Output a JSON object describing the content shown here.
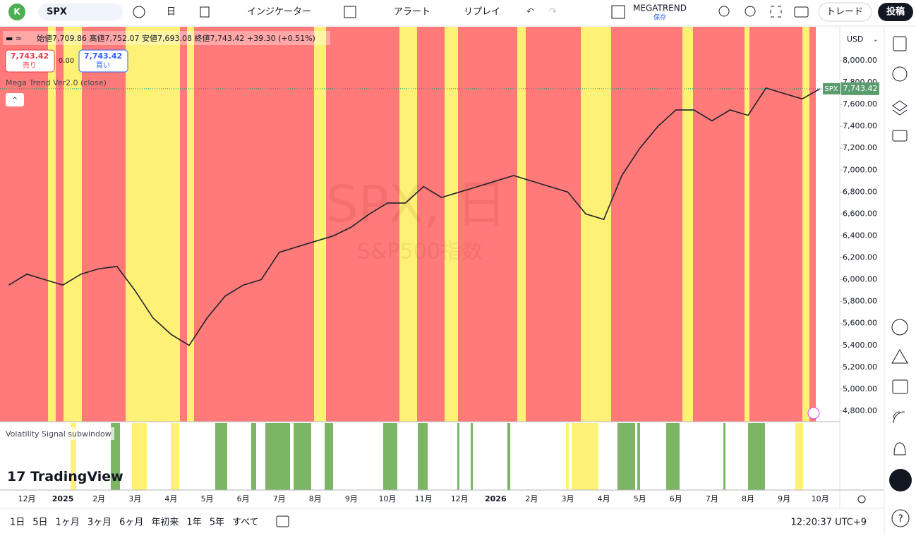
{
  "toolbar": {
    "avatar": "K",
    "symbol": "SPX",
    "interval": "日",
    "indicators": "インジケーター",
    "alert": "アラート",
    "replay": "リプレイ",
    "layout_name": "MEGATREND",
    "layout_status": "保存",
    "trade": "トレード",
    "publish": "投稿"
  },
  "legend": {
    "ohlc": "始値7,709.86 高値7,752.07 安値7,693.08 終値7,743.42 +39.30 (+0.51%)",
    "sell_price": "7,743.42",
    "sell": "売り",
    "spread": "0.00",
    "buy_price": "7,743.42",
    "buy": "買い",
    "indicator": "Mega Trend Ver2.0 (close)"
  },
  "watermark": {
    "symbol": "SPX, 日",
    "name": "S&P500指数"
  },
  "subwindow": {
    "title": "Volatility Signal subwindow",
    "logo": "TradingView"
  },
  "price_axis": {
    "currency": "USD",
    "tag_symbol": "SPX"
  },
  "chart_data": {
    "type": "line",
    "color": "#1e222d",
    "categories": [
      null,
      "12月",
      null,
      "2025",
      null,
      "2月",
      null,
      "3月",
      null,
      "4月",
      null,
      "5月",
      null,
      "6月",
      null,
      "7月",
      null,
      "8月",
      null,
      "9月",
      null,
      "10月",
      null,
      "11月",
      null,
      "12月",
      null,
      "2026",
      null,
      "2月",
      null,
      "3月",
      null,
      "4月",
      null,
      "5月",
      null,
      "6月",
      null,
      "7月",
      null,
      "8月",
      null,
      "9月",
      null,
      "10月"
    ],
    "values": [
      5950,
      6050,
      6000,
      5950,
      6050,
      6100,
      6120,
      5900,
      5650,
      5500,
      5400,
      5650,
      5850,
      5950,
      6000,
      6250,
      6300,
      6350,
      6400,
      6480,
      6600,
      6700,
      6700,
      6850,
      6750,
      6800,
      6850,
      6900,
      6950,
      6900,
      6850,
      6800,
      6600,
      6550,
      6950,
      7200,
      7400,
      7550,
      7550,
      7450,
      7550,
      7500,
      7750,
      7700,
      7650,
      7743.42
    ],
    "last_price": {
      "value": 7743.42,
      "label": "7,743.42"
    },
    "ylim": [
      4703,
      8309
    ],
    "yticks": [
      {
        "value": 4800,
        "label": "4,800.00"
      },
      {
        "value": 5000,
        "label": "5,000.00"
      },
      {
        "value": 5200,
        "label": "5,200.00"
      },
      {
        "value": 5400,
        "label": "5,400.00"
      },
      {
        "value": 5600,
        "label": "5,600.00"
      },
      {
        "value": 5800,
        "label": "5,800.00"
      },
      {
        "value": 6000,
        "label": "6,000.00"
      },
      {
        "value": 6200,
        "label": "6,200.00"
      },
      {
        "value": 6400,
        "label": "6,400.00"
      },
      {
        "value": 6600,
        "label": "6,600.00"
      },
      {
        "value": 6800,
        "label": "6,800.00"
      },
      {
        "value": 7000,
        "label": "7,000.00"
      },
      {
        "value": 7200,
        "label": "7,200.00"
      },
      {
        "value": 7400,
        "label": "7,400.00"
      },
      {
        "value": 7600,
        "label": "7,600.00"
      },
      {
        "value": 7800,
        "label": "7,800.00"
      },
      {
        "value": 8000,
        "label": "8,000.00"
      }
    ]
  },
  "ranges": [
    "1日",
    "5日",
    "1ヶ月",
    "3ヶ月",
    "6ヶ月",
    "年初来",
    "1年",
    "5年",
    "すべて"
  ],
  "clock": "12:20:37 UTC+9"
}
